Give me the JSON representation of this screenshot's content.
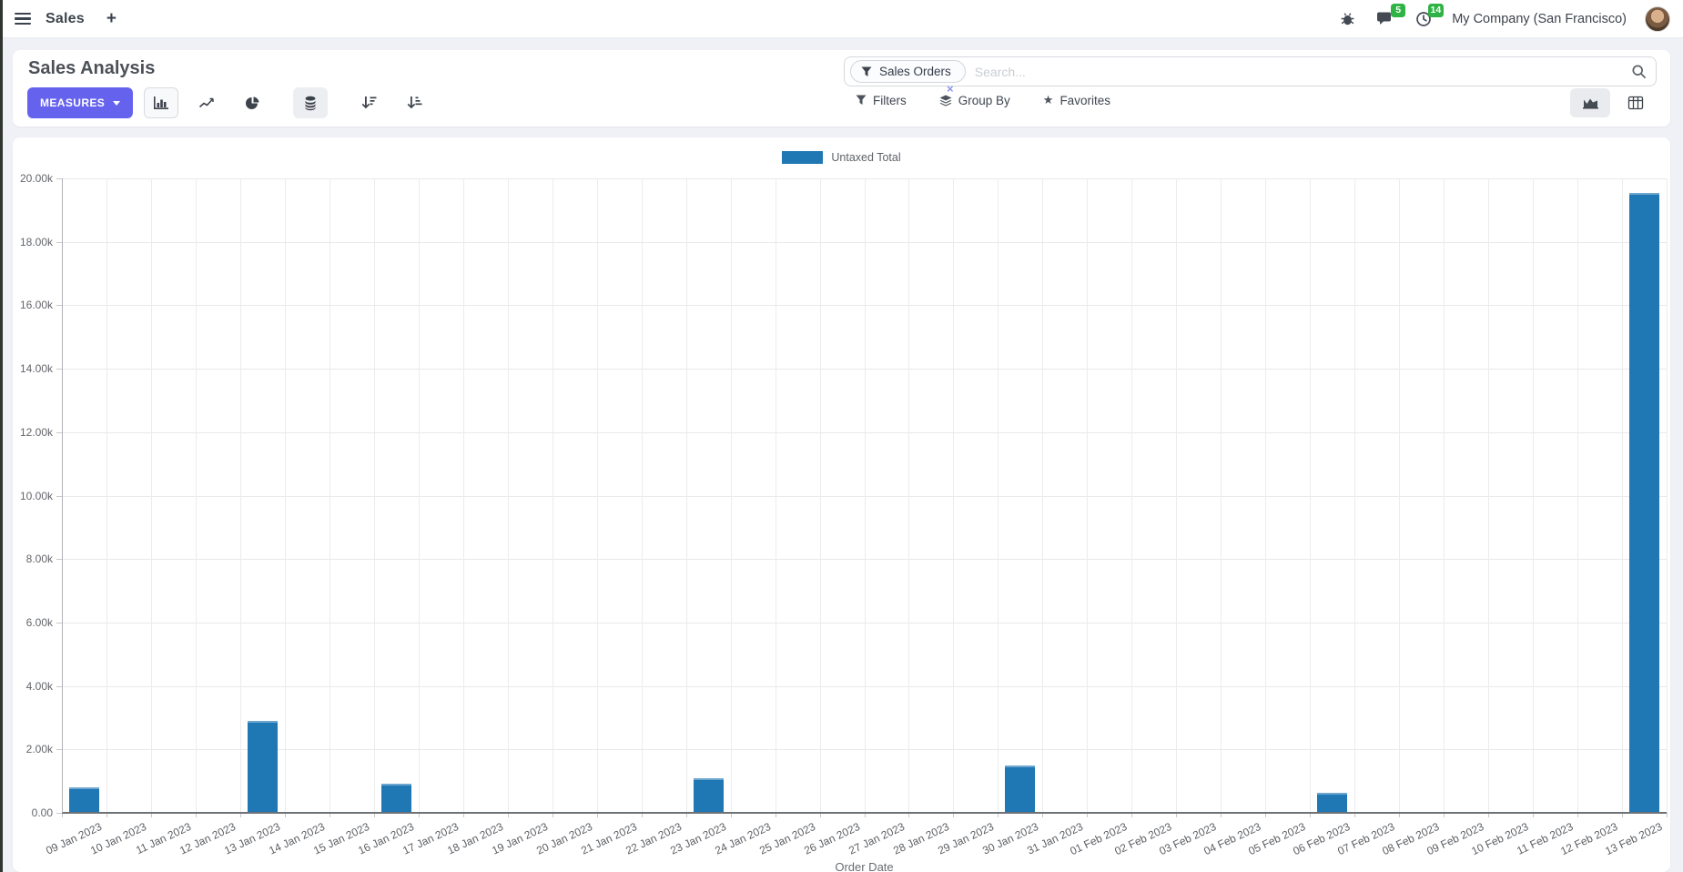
{
  "colors": {
    "primary": "#6563ee",
    "bar": "#1f77b4",
    "badge": "#2fb344"
  },
  "icons": {
    "star": "★",
    "remove_facet": "×"
  },
  "navbar": {
    "app_name": "Sales",
    "plus": "+",
    "message_badge": "5",
    "activity_badge": "14",
    "company": "My Company (San Francisco)"
  },
  "control_panel": {
    "title": "Sales Analysis",
    "measures_label": "MEASURES",
    "search": {
      "facet": "Sales Orders",
      "placeholder": "Search..."
    },
    "buttons": {
      "filters": "Filters",
      "group_by": "Group By",
      "favorites": "Favorites"
    }
  },
  "chart_data": {
    "type": "bar",
    "legend": [
      "Untaxed Total"
    ],
    "categories": [
      "09 Jan 2023",
      "10 Jan 2023",
      "11 Jan 2023",
      "12 Jan 2023",
      "13 Jan 2023",
      "14 Jan 2023",
      "15 Jan 2023",
      "16 Jan 2023",
      "17 Jan 2023",
      "18 Jan 2023",
      "19 Jan 2023",
      "20 Jan 2023",
      "21 Jan 2023",
      "22 Jan 2023",
      "23 Jan 2023",
      "24 Jan 2023",
      "25 Jan 2023",
      "26 Jan 2023",
      "27 Jan 2023",
      "28 Jan 2023",
      "29 Jan 2023",
      "30 Jan 2023",
      "31 Jan 2023",
      "01 Feb 2023",
      "02 Feb 2023",
      "03 Feb 2023",
      "04 Feb 2023",
      "05 Feb 2023",
      "06 Feb 2023",
      "07 Feb 2023",
      "08 Feb 2023",
      "09 Feb 2023",
      "10 Feb 2023",
      "11 Feb 2023",
      "12 Feb 2023",
      "13 Feb 2023"
    ],
    "series": [
      {
        "name": "Untaxed Total",
        "color": "#1f77b4",
        "values": [
          800,
          0,
          0,
          0,
          2900,
          0,
          0,
          920,
          0,
          0,
          0,
          0,
          0,
          0,
          1080,
          0,
          0,
          0,
          0,
          0,
          0,
          1500,
          0,
          0,
          0,
          0,
          0,
          0,
          620,
          0,
          0,
          0,
          0,
          0,
          0,
          19550
        ]
      }
    ],
    "xlabel": "Order Date",
    "ylabel": "",
    "ylim": [
      0,
      20000
    ],
    "ytick_step": 2000,
    "ytick_labels": [
      "0.00",
      "2.00k",
      "4.00k",
      "6.00k",
      "8.00k",
      "10.00k",
      "12.00k",
      "14.00k",
      "16.00k",
      "18.00k",
      "20.00k"
    ],
    "grid": true,
    "legend_position": "top"
  }
}
